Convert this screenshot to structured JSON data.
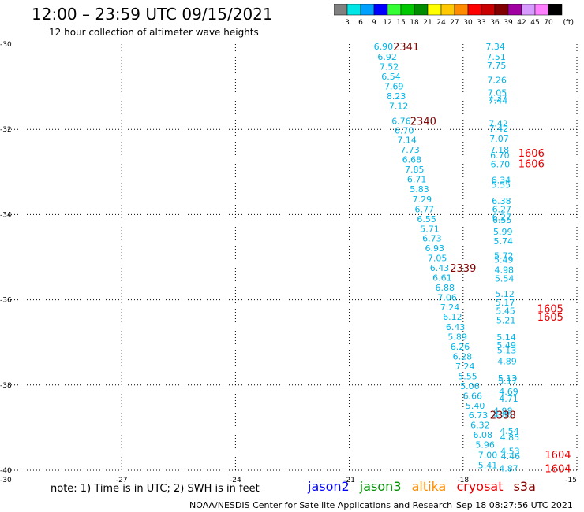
{
  "header": {
    "title": "12:00 – 23:59 UTC 09/15/2021",
    "subtitle": "12 hour collection of altimeter wave heights"
  },
  "legend": {
    "unit": "(ft)",
    "bins": [
      {
        "label": "3",
        "color": "#808080"
      },
      {
        "label": "6",
        "color": "#00e6e6"
      },
      {
        "label": "9",
        "color": "#00a0ff"
      },
      {
        "label": "12",
        "color": "#0000ff"
      },
      {
        "label": "15",
        "color": "#33ff33"
      },
      {
        "label": "18",
        "color": "#00c800"
      },
      {
        "label": "21",
        "color": "#008c00"
      },
      {
        "label": "24",
        "color": "#ffff00"
      },
      {
        "label": "27",
        "color": "#ffc800"
      },
      {
        "label": "30",
        "color": "#ff8c00"
      },
      {
        "label": "33",
        "color": "#ff0000"
      },
      {
        "label": "36",
        "color": "#c80000"
      },
      {
        "label": "39",
        "color": "#800000"
      },
      {
        "label": "42",
        "color": "#a000a0"
      },
      {
        "label": "45",
        "color": "#d79bff"
      },
      {
        "label": "70",
        "color": "#ff80ff"
      },
      {
        "label": "",
        "color": "#000000"
      }
    ]
  },
  "axes": {
    "lon_labels": [
      "-30",
      "-27",
      "-24",
      "-21",
      "-18",
      "-15"
    ],
    "lat_labels": [
      "-30",
      "-32",
      "-34",
      "-36",
      "-38",
      "-40"
    ],
    "lon_grid": [
      -27,
      -24,
      -21,
      -18,
      -15
    ],
    "lat_grid": [
      -32,
      -34,
      -36,
      -38,
      -40
    ],
    "lon_range": [
      -30,
      -15
    ],
    "lat_range": [
      -30,
      -40
    ]
  },
  "colors": {
    "swh": "#00b4e6",
    "track_dark": "#800000",
    "track_red": "#e60000",
    "jason2": "#0000ff",
    "jason3": "#008c00",
    "altika": "#ff8c00",
    "cryosat": "#e60000",
    "s3a": "#800000"
  },
  "observations": [
    {
      "v": "6.90",
      "lon": -20.1,
      "lat": -30.06
    },
    {
      "v": "6.92",
      "lon": -20.0,
      "lat": -30.3
    },
    {
      "v": "7.52",
      "lon": -19.95,
      "lat": -30.53
    },
    {
      "v": "6.54",
      "lon": -19.9,
      "lat": -30.76
    },
    {
      "v": "7.69",
      "lon": -19.82,
      "lat": -30.99
    },
    {
      "v": "8.23",
      "lon": -19.76,
      "lat": -31.22
    },
    {
      "v": "7.12",
      "lon": -19.7,
      "lat": -31.45
    },
    {
      "v": "6.76",
      "lon": -19.63,
      "lat": -31.8
    },
    {
      "v": "6.70",
      "lon": -19.55,
      "lat": -32.02
    },
    {
      "v": "7.14",
      "lon": -19.48,
      "lat": -32.25
    },
    {
      "v": "7.73",
      "lon": -19.4,
      "lat": -32.48
    },
    {
      "v": "6.68",
      "lon": -19.35,
      "lat": -32.71
    },
    {
      "v": "7.85",
      "lon": -19.28,
      "lat": -32.94
    },
    {
      "v": "6.71",
      "lon": -19.22,
      "lat": -33.17
    },
    {
      "v": "5.83",
      "lon": -19.15,
      "lat": -33.4
    },
    {
      "v": "7.29",
      "lon": -19.08,
      "lat": -33.64
    },
    {
      "v": "6.77",
      "lon": -19.02,
      "lat": -33.87
    },
    {
      "v": "6.55",
      "lon": -18.96,
      "lat": -34.1
    },
    {
      "v": "5.71",
      "lon": -18.88,
      "lat": -34.33
    },
    {
      "v": "6.73",
      "lon": -18.82,
      "lat": -34.56
    },
    {
      "v": "6.93",
      "lon": -18.75,
      "lat": -34.79
    },
    {
      "v": "7.05",
      "lon": -18.68,
      "lat": -35.02
    },
    {
      "v": "6.43",
      "lon": -18.62,
      "lat": -35.25
    },
    {
      "v": "6.61",
      "lon": -18.55,
      "lat": -35.48
    },
    {
      "v": "6.88",
      "lon": -18.48,
      "lat": -35.71
    },
    {
      "v": "7.06",
      "lon": -18.42,
      "lat": -35.94
    },
    {
      "v": "7.24",
      "lon": -18.35,
      "lat": -36.17
    },
    {
      "v": "6.12",
      "lon": -18.28,
      "lat": -36.4
    },
    {
      "v": "6.43",
      "lon": -18.2,
      "lat": -36.64
    },
    {
      "v": "5.89",
      "lon": -18.15,
      "lat": -36.87
    },
    {
      "v": "6.26",
      "lon": -18.08,
      "lat": -37.1
    },
    {
      "v": "6.28",
      "lon": -18.02,
      "lat": -37.33
    },
    {
      "v": "7.24",
      "lon": -17.95,
      "lat": -37.56
    },
    {
      "v": "5.55",
      "lon": -17.88,
      "lat": -37.79
    },
    {
      "v": "5.06",
      "lon": -17.82,
      "lat": -38.02
    },
    {
      "v": "6.66",
      "lon": -17.75,
      "lat": -38.25
    },
    {
      "v": "5.40",
      "lon": -17.68,
      "lat": -38.48
    },
    {
      "v": "6.73",
      "lon": -17.6,
      "lat": -38.71
    },
    {
      "v": "6.32",
      "lon": -17.55,
      "lat": -38.94
    },
    {
      "v": "6.08",
      "lon": -17.48,
      "lat": -39.17
    },
    {
      "v": "5.96",
      "lon": -17.42,
      "lat": -39.4
    },
    {
      "v": "7.00",
      "lon": -17.35,
      "lat": -39.64
    },
    {
      "v": "5.41",
      "lon": -17.35,
      "lat": -39.88
    },
    {
      "v": "7.34",
      "lon": -17.15,
      "lat": -30.06
    },
    {
      "v": "7.51",
      "lon": -17.13,
      "lat": -30.3
    },
    {
      "v": "7.75",
      "lon": -17.12,
      "lat": -30.5
    },
    {
      "v": "7.26",
      "lon": -17.11,
      "lat": -30.84
    },
    {
      "v": "7.05",
      "lon": -17.1,
      "lat": -31.14
    },
    {
      "v": "7.37",
      "lon": -17.09,
      "lat": -31.26
    },
    {
      "v": "7.44",
      "lon": -17.08,
      "lat": -31.32
    },
    {
      "v": "7.42",
      "lon": -17.07,
      "lat": -31.86
    },
    {
      "v": "7.42",
      "lon": -17.06,
      "lat": -31.98
    },
    {
      "v": "7.07",
      "lon": -17.05,
      "lat": -32.22
    },
    {
      "v": "7.18",
      "lon": -17.04,
      "lat": -32.48
    },
    {
      "v": "6.70",
      "lon": -17.03,
      "lat": -32.61
    },
    {
      "v": "6.70",
      "lon": -17.02,
      "lat": -32.82
    },
    {
      "v": "6.34",
      "lon": -17.0,
      "lat": -33.19
    },
    {
      "v": "5.55",
      "lon": -17.0,
      "lat": -33.3
    },
    {
      "v": "6.38",
      "lon": -16.99,
      "lat": -33.68
    },
    {
      "v": "6.27",
      "lon": -16.98,
      "lat": -33.87
    },
    {
      "v": "6.27",
      "lon": -16.98,
      "lat": -34.06
    },
    {
      "v": "6.55",
      "lon": -16.97,
      "lat": -34.12
    },
    {
      "v": "5.99",
      "lon": -16.95,
      "lat": -34.4
    },
    {
      "v": "5.74",
      "lon": -16.94,
      "lat": -34.62
    },
    {
      "v": "5.72",
      "lon": -16.93,
      "lat": -34.96
    },
    {
      "v": "5.49",
      "lon": -16.93,
      "lat": -35.06
    },
    {
      "v": "4.98",
      "lon": -16.92,
      "lat": -35.3
    },
    {
      "v": "5.54",
      "lon": -16.91,
      "lat": -35.5
    },
    {
      "v": "5.12",
      "lon": -16.9,
      "lat": -35.86
    },
    {
      "v": "5.17",
      "lon": -16.89,
      "lat": -36.06
    },
    {
      "v": "5.45",
      "lon": -16.88,
      "lat": -36.26
    },
    {
      "v": "5.21",
      "lon": -16.87,
      "lat": -36.48
    },
    {
      "v": "5.14",
      "lon": -16.86,
      "lat": -36.88
    },
    {
      "v": "5.49",
      "lon": -16.86,
      "lat": -37.06
    },
    {
      "v": "5.13",
      "lon": -16.85,
      "lat": -37.18
    },
    {
      "v": "4.89",
      "lon": -16.84,
      "lat": -37.44
    },
    {
      "v": "5.13",
      "lon": -16.83,
      "lat": -37.84
    },
    {
      "v": "5.17",
      "lon": -16.82,
      "lat": -37.9
    },
    {
      "v": "4.69",
      "lon": -16.8,
      "lat": -38.15
    },
    {
      "v": "4.71",
      "lon": -16.8,
      "lat": -38.32
    },
    {
      "v": "4.98",
      "lon": -16.95,
      "lat": -38.6
    },
    {
      "v": "4.86",
      "lon": -16.95,
      "lat": -38.7
    },
    {
      "v": "4.54",
      "lon": -16.78,
      "lat": -39.08
    },
    {
      "v": "4.85",
      "lon": -16.77,
      "lat": -39.22
    },
    {
      "v": "4.53",
      "lon": -16.76,
      "lat": -39.55
    },
    {
      "v": "4.46",
      "lon": -16.75,
      "lat": -39.67
    },
    {
      "v": "4.87",
      "lon": -16.8,
      "lat": -39.95
    }
  ],
  "tracks": [
    {
      "id": "2341",
      "lon": -19.5,
      "lat": -30.06,
      "color": "#800000"
    },
    {
      "id": "2340",
      "lon": -19.05,
      "lat": -31.8,
      "color": "#800000"
    },
    {
      "id": "2339",
      "lon": -18.0,
      "lat": -35.25,
      "color": "#800000"
    },
    {
      "id": "2338",
      "lon": -16.95,
      "lat": -38.7,
      "color": "#800000"
    },
    {
      "id": "1606",
      "lon": -16.2,
      "lat": -32.55,
      "color": "#e60000"
    },
    {
      "id": "1606",
      "lon": -16.2,
      "lat": -32.8,
      "color": "#e60000"
    },
    {
      "id": "1605",
      "lon": -15.7,
      "lat": -36.2,
      "color": "#e60000"
    },
    {
      "id": "1605",
      "lon": -15.7,
      "lat": -36.4,
      "color": "#e60000"
    },
    {
      "id": "1604",
      "lon": -15.5,
      "lat": -39.63,
      "color": "#e60000"
    },
    {
      "id": "1604",
      "lon": -15.5,
      "lat": -39.95,
      "color": "#e60000"
    }
  ],
  "footer": {
    "note": "note: 1) Time is in UTC; 2) SWH is in feet",
    "satellites": [
      "jason2",
      "jason3",
      "altika",
      "cryosat",
      "s3a"
    ],
    "credit": "NOAA/NESDIS Center for Satellite Applications and Research",
    "timestamp": "Sep 18 08:27:56 UTC 2021"
  }
}
